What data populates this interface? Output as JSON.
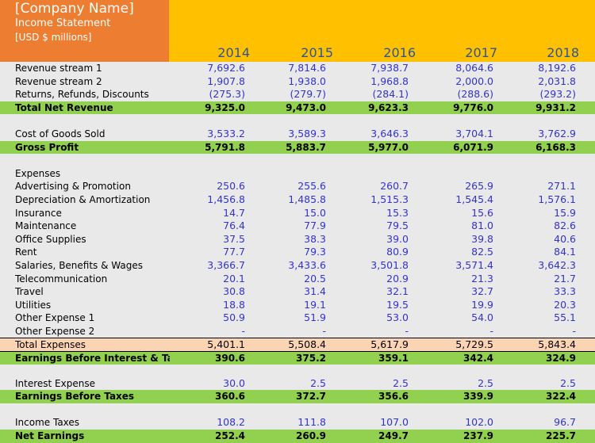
{
  "header": {
    "company": "[Company Name]",
    "title": "Income Statement",
    "units": "[USD $ millions]",
    "years": [
      "2014",
      "2015",
      "2016",
      "2017",
      "2018"
    ]
  },
  "colors": {
    "brand": "#ed7d31",
    "header": "#ffc000",
    "total": "#92d050",
    "subtotal": "#fbd4b4",
    "value": "#3333cc"
  },
  "rows": [
    {
      "label": "Revenue stream 1",
      "values": [
        "7,692.6",
        "7,814.6",
        "7,938.7",
        "8,064.6",
        "8,192.6"
      ]
    },
    {
      "label": "Revenue stream 2",
      "values": [
        "1,907.8",
        "1,938.0",
        "1,968.8",
        "2,000.0",
        "2,031.8"
      ]
    },
    {
      "label": "Returns, Refunds, Discounts",
      "values": [
        "(275.3)",
        "(279.7)",
        "(284.1)",
        "(288.6)",
        "(293.2)"
      ]
    },
    {
      "label": "Total Net Revenue",
      "values": [
        "9,325.0",
        "9,473.0",
        "9,623.3",
        "9,776.0",
        "9,931.2"
      ]
    },
    {
      "label": "Cost of Goods Sold",
      "values": [
        "3,533.2",
        "3,589.3",
        "3,646.3",
        "3,704.1",
        "3,762.9"
      ]
    },
    {
      "label": "Gross Profit",
      "values": [
        "5,791.8",
        "5,883.7",
        "5,977.0",
        "6,071.9",
        "6,168.3"
      ]
    },
    {
      "label": "Expenses",
      "values": [
        "",
        "",
        "",
        "",
        ""
      ]
    },
    {
      "label": "Advertising & Promotion",
      "values": [
        "250.6",
        "255.6",
        "260.7",
        "265.9",
        "271.1"
      ]
    },
    {
      "label": "Depreciation & Amortization",
      "values": [
        "1,456.8",
        "1,485.8",
        "1,515.3",
        "1,545.4",
        "1,576.1"
      ]
    },
    {
      "label": "Insurance",
      "values": [
        "14.7",
        "15.0",
        "15.3",
        "15.6",
        "15.9"
      ]
    },
    {
      "label": "Maintenance",
      "values": [
        "76.4",
        "77.9",
        "79.5",
        "81.0",
        "82.6"
      ]
    },
    {
      "label": "Office Supplies",
      "values": [
        "37.5",
        "38.3",
        "39.0",
        "39.8",
        "40.6"
      ]
    },
    {
      "label": "Rent",
      "values": [
        "77.7",
        "79.3",
        "80.9",
        "82.5",
        "84.1"
      ]
    },
    {
      "label": "Salaries, Benefits & Wages",
      "values": [
        "3,366.7",
        "3,433.6",
        "3,501.8",
        "3,571.4",
        "3,642.3"
      ]
    },
    {
      "label": "Telecommunication",
      "values": [
        "20.1",
        "20.5",
        "20.9",
        "21.3",
        "21.7"
      ]
    },
    {
      "label": "Travel",
      "values": [
        "30.8",
        "31.4",
        "32.1",
        "32.7",
        "33.3"
      ]
    },
    {
      "label": "Utilities",
      "values": [
        "18.8",
        "19.1",
        "19.5",
        "19.9",
        "20.3"
      ]
    },
    {
      "label": "Other Expense 1",
      "values": [
        "50.9",
        "51.9",
        "53.0",
        "54.0",
        "55.1"
      ]
    },
    {
      "label": "Other Expense 2",
      "values": [
        "-",
        "-",
        "-",
        "-",
        "-"
      ]
    },
    {
      "label": "Total Expenses",
      "values": [
        "5,401.1",
        "5,508.4",
        "5,617.9",
        "5,729.5",
        "5,843.4"
      ]
    },
    {
      "label": "Earnings Before Interest & Taxes",
      "values": [
        "390.6",
        "375.2",
        "359.1",
        "342.4",
        "324.9"
      ]
    },
    {
      "label": "Interest Expense",
      "values": [
        "30.0",
        "2.5",
        "2.5",
        "2.5",
        "2.5"
      ]
    },
    {
      "label": "Earnings Before Taxes",
      "values": [
        "360.6",
        "372.7",
        "356.6",
        "339.9",
        "322.4"
      ]
    },
    {
      "label": "Income Taxes",
      "values": [
        "108.2",
        "111.8",
        "107.0",
        "102.0",
        "96.7"
      ]
    },
    {
      "label": "Net Earnings",
      "values": [
        "252.4",
        "260.9",
        "249.7",
        "237.9",
        "225.7"
      ]
    }
  ]
}
